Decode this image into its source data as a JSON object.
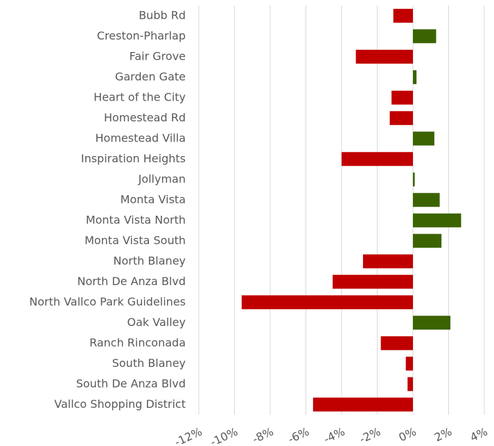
{
  "chart_data": {
    "type": "hbar",
    "categories": [
      "Bubb Rd",
      "Creston-Pharlap",
      "Fair Grove",
      "Garden Gate",
      "Heart of the City",
      "Homestead Rd",
      "Homestead Villa",
      "Inspiration Heights",
      "Jollyman",
      "Monta Vista",
      "Monta Vista North",
      "Monta Vista South",
      "North Blaney",
      "North De Anza Blvd",
      "North Vallco Park Guidelines",
      "Oak Valley",
      "Ranch Rinconada",
      "South Blaney ",
      "South De Anza Blvd",
      "Vallco Shopping District"
    ],
    "values": [
      -1.1,
      1.3,
      -3.2,
      0.2,
      -1.2,
      -1.3,
      1.2,
      -4.0,
      0.1,
      1.5,
      2.7,
      1.6,
      -2.8,
      -4.5,
      -9.6,
      2.1,
      -1.8,
      -0.4,
      -0.3,
      -5.6
    ],
    "positive_color": "#3b6300",
    "negative_color": "#c00000",
    "xlim": [
      -12,
      4
    ],
    "xticks": [
      {
        "value": -12,
        "label": "-12%"
      },
      {
        "value": -10,
        "label": "-10%"
      },
      {
        "value": -8,
        "label": "-8%"
      },
      {
        "value": -6,
        "label": "-6%"
      },
      {
        "value": -4,
        "label": "-4%"
      },
      {
        "value": -2,
        "label": "-2%"
      },
      {
        "value": 0,
        "label": "0%"
      },
      {
        "value": 2,
        "label": "2%"
      },
      {
        "value": 4,
        "label": "4%"
      }
    ],
    "grid": true
  }
}
